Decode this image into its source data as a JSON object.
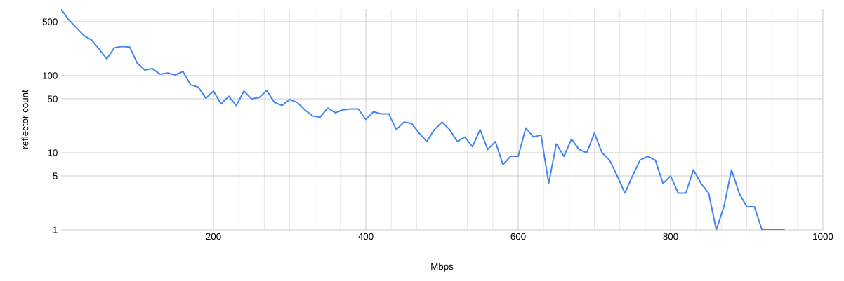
{
  "chart_data": {
    "type": "line",
    "xlabel": "Mbps",
    "ylabel": "reflector count",
    "log": "y",
    "grid": true,
    "marker": "none",
    "line_style": "solid",
    "xlim": [
      0,
      1000
    ],
    "xticks": [
      200,
      400,
      600,
      800,
      1000
    ],
    "ylim": [
      1,
      730
    ],
    "yticks": [
      1,
      5,
      10,
      50,
      100,
      500
    ],
    "x": [
      0,
      10,
      20,
      30,
      40,
      50,
      60,
      70,
      80,
      90,
      100,
      110,
      120,
      130,
      140,
      150,
      160,
      170,
      180,
      190,
      200,
      210,
      220,
      230,
      240,
      250,
      260,
      270,
      280,
      290,
      300,
      310,
      320,
      330,
      340,
      350,
      360,
      370,
      380,
      390,
      400,
      410,
      420,
      430,
      440,
      450,
      460,
      470,
      480,
      490,
      500,
      510,
      520,
      530,
      540,
      550,
      560,
      570,
      580,
      590,
      600,
      610,
      620,
      630,
      640,
      650,
      660,
      670,
      680,
      690,
      700,
      710,
      720,
      730,
      740,
      750,
      760,
      770,
      780,
      790,
      800,
      810,
      820,
      830,
      840,
      850,
      860,
      870,
      880,
      890,
      900,
      910,
      920,
      930,
      940,
      950
    ],
    "series": [
      {
        "color": "#4285f4",
        "values": [
          730,
          530,
          420,
          330,
          290,
          220,
          165,
          230,
          240,
          235,
          145,
          118,
          123,
          104,
          108,
          102,
          113,
          76,
          71,
          51,
          63,
          43,
          54,
          41,
          63,
          50,
          52,
          64,
          45,
          41,
          49,
          45,
          36,
          30,
          29,
          38,
          33,
          36,
          37,
          37,
          27,
          34,
          32,
          32,
          20,
          25,
          24,
          18,
          14,
          20,
          25,
          20,
          14,
          16,
          12,
          20,
          11,
          14,
          7,
          9,
          9,
          21,
          16,
          17,
          4,
          13,
          9,
          15,
          11,
          10,
          18,
          10,
          8,
          5,
          3,
          5,
          8,
          9,
          8,
          4,
          5,
          3,
          3,
          6,
          4,
          3,
          1,
          2,
          6,
          3,
          2,
          2,
          1,
          1,
          1,
          1
        ]
      }
    ]
  }
}
